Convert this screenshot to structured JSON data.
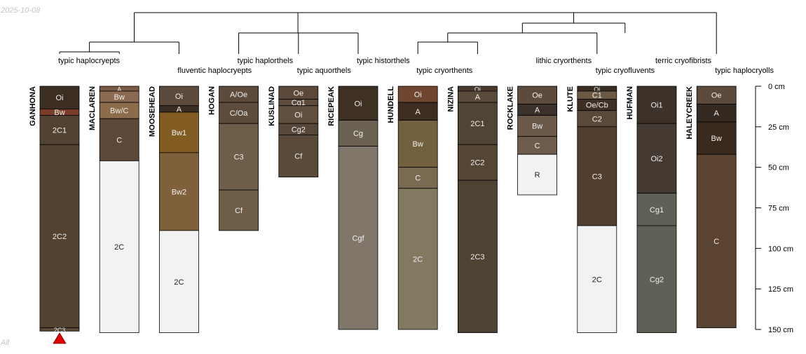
{
  "date_stamp": "2025-10-08",
  "group_label": "All",
  "depth_axis": {
    "unit": "cm",
    "max_depth": 150,
    "ticks": [
      {
        "depth": 0,
        "label": "0 cm"
      },
      {
        "depth": 25,
        "label": "25 cm"
      },
      {
        "depth": 50,
        "label": "50 cm"
      },
      {
        "depth": 75,
        "label": "75 cm"
      },
      {
        "depth": 100,
        "label": "100 cm"
      },
      {
        "depth": 125,
        "label": "125 cm"
      },
      {
        "depth": 150,
        "label": "150 cm"
      }
    ]
  },
  "taxa_labels": [
    {
      "text": "typic haplocryepts",
      "profile": "GANHONA"
    },
    {
      "text": "fluventic haplocryepts",
      "profile": "MOOSEHEAD"
    },
    {
      "text": "typic haplorthels",
      "profile": "HOGAN"
    },
    {
      "text": "typic aquorthels",
      "profile": "KUSLINAD"
    },
    {
      "text": "typic historthels",
      "profile": "RICEPEAK"
    },
    {
      "text": "typic cryorthents",
      "profile": "HUNDELL"
    },
    {
      "text": "lithic cryorthents",
      "profile": "ROCKLAKE"
    },
    {
      "text": "typic cryofluvents",
      "profile": "KLUTE"
    },
    {
      "text": "terric cryofibrists",
      "profile": "HUFMAN"
    },
    {
      "text": "typic haplocryolls",
      "profile": "HALEYCREEK"
    }
  ],
  "profiles": [
    {
      "name": "GANHONA",
      "marker": "truncated",
      "horizons": [
        {
          "name": "Oi",
          "top": 0,
          "bottom": 14,
          "color": "#3c2e22"
        },
        {
          "name": "Bw",
          "top": 14,
          "bottom": 18,
          "color": "#7a3e28"
        },
        {
          "name": "2C1",
          "top": 18,
          "bottom": 36,
          "color": "#524232"
        },
        {
          "name": "2C2",
          "top": 36,
          "bottom": 149,
          "color": "#534230"
        },
        {
          "name": "2C3",
          "top": 149,
          "bottom": 151,
          "color": "#5a4a38"
        }
      ]
    },
    {
      "name": "MACLAREN",
      "horizons": [
        {
          "name": "A",
          "top": 0,
          "bottom": 3,
          "color": "#7a5a44"
        },
        {
          "name": "Bw",
          "top": 3,
          "bottom": 10,
          "color": "#8a6a52"
        },
        {
          "name": "Bw/C",
          "top": 10,
          "bottom": 20,
          "color": "#8c6c4a"
        },
        {
          "name": "C",
          "top": 20,
          "bottom": 46,
          "color": "#5b4837"
        },
        {
          "name": "2C",
          "top": 46,
          "bottom": 152,
          "color": "#f2f2f2"
        }
      ]
    },
    {
      "name": "MOOSEHEAD",
      "horizons": [
        {
          "name": "Oi",
          "top": 0,
          "bottom": 12,
          "color": "#5c4a3c"
        },
        {
          "name": "A",
          "top": 12,
          "bottom": 16,
          "color": "#3a2e24"
        },
        {
          "name": "Bw1",
          "top": 16,
          "bottom": 41,
          "color": "#825c22"
        },
        {
          "name": "Bw2",
          "top": 41,
          "bottom": 89,
          "color": "#80603a"
        },
        {
          "name": "2C",
          "top": 89,
          "bottom": 152,
          "color": "#f2f2f2"
        }
      ]
    },
    {
      "name": "HOGAN",
      "horizons": [
        {
          "name": "A/Oe",
          "top": 0,
          "bottom": 10,
          "color": "#5c4a3a"
        },
        {
          "name": "C/Oa",
          "top": 10,
          "bottom": 23,
          "color": "#5d4c3c"
        },
        {
          "name": "C3",
          "top": 23,
          "bottom": 64,
          "color": "#6e5d48"
        },
        {
          "name": "Cf",
          "top": 64,
          "bottom": 89,
          "color": "#6e5e48"
        }
      ]
    },
    {
      "name": "KUSLINAD",
      "horizons": [
        {
          "name": "Oe",
          "top": 0,
          "bottom": 8,
          "color": "#5c4838"
        },
        {
          "name": "Cg1",
          "top": 8,
          "bottom": 12,
          "color": "#5e4a3a"
        },
        {
          "name": "Oi",
          "top": 12,
          "bottom": 23,
          "color": "#62503f"
        },
        {
          "name": "Cg2",
          "top": 23,
          "bottom": 30,
          "color": "#56473a"
        },
        {
          "name": "Cf",
          "top": 30,
          "bottom": 56,
          "color": "#5a4a3a"
        }
      ]
    },
    {
      "name": "RICEPEAK",
      "horizons": [
        {
          "name": "Oi",
          "top": 0,
          "bottom": 21,
          "color": "#3f3024"
        },
        {
          "name": "Cg",
          "top": 21,
          "bottom": 37,
          "color": "#6c6254"
        },
        {
          "name": "Cgf",
          "top": 37,
          "bottom": 150,
          "color": "#80766a"
        }
      ]
    },
    {
      "name": "HUNDELL",
      "horizons": [
        {
          "name": "Oi",
          "top": 0,
          "bottom": 10,
          "color": "#6f4630"
        },
        {
          "name": "A",
          "top": 10,
          "bottom": 21,
          "color": "#3e2e22"
        },
        {
          "name": "Bw",
          "top": 21,
          "bottom": 50,
          "color": "#73603f"
        },
        {
          "name": "C",
          "top": 50,
          "bottom": 63,
          "color": "#7a6a52"
        },
        {
          "name": "2C",
          "top": 63,
          "bottom": 150,
          "color": "#837860"
        }
      ]
    },
    {
      "name": "NIZINA",
      "horizons": [
        {
          "name": "Oi",
          "top": 0,
          "bottom": 3,
          "color": "#4a3a2e"
        },
        {
          "name": "A",
          "top": 3,
          "bottom": 10,
          "color": "#5a4a3c"
        },
        {
          "name": "2C1",
          "top": 10,
          "bottom": 36,
          "color": "#504434"
        },
        {
          "name": "2C2",
          "top": 36,
          "bottom": 58,
          "color": "#544535"
        },
        {
          "name": "2C3",
          "top": 58,
          "bottom": 152,
          "color": "#4e4232"
        }
      ]
    },
    {
      "name": "ROCKLAKE",
      "horizons": [
        {
          "name": "Oe",
          "top": 0,
          "bottom": 11,
          "color": "#5c4a3c"
        },
        {
          "name": "A",
          "top": 11,
          "bottom": 18,
          "color": "#3c302a"
        },
        {
          "name": "Bw",
          "top": 18,
          "bottom": 31,
          "color": "#6a5848"
        },
        {
          "name": "C",
          "top": 31,
          "bottom": 42,
          "color": "#6e5c4c"
        },
        {
          "name": "R",
          "top": 42,
          "bottom": 67,
          "color": "#f2f2f2"
        }
      ]
    },
    {
      "name": "KLUTE",
      "horizons": [
        {
          "name": "Oi",
          "top": 0,
          "bottom": 3,
          "color": "#3a2e24"
        },
        {
          "name": "C1",
          "top": 3,
          "bottom": 8,
          "color": "#6a5a44"
        },
        {
          "name": "Oe/Cb",
          "top": 8,
          "bottom": 15,
          "color": "#3e3024"
        },
        {
          "name": "C2",
          "top": 15,
          "bottom": 25,
          "color": "#5a4838"
        },
        {
          "name": "C3",
          "top": 25,
          "bottom": 86,
          "color": "#523f30"
        },
        {
          "name": "2C",
          "top": 86,
          "bottom": 152,
          "color": "#f2f2f2"
        }
      ]
    },
    {
      "name": "HUFMAN",
      "horizons": [
        {
          "name": "Oi1",
          "top": 0,
          "bottom": 23,
          "color": "#3c322a"
        },
        {
          "name": "Oi2",
          "top": 23,
          "bottom": 66,
          "color": "#443a32"
        },
        {
          "name": "Cg1",
          "top": 66,
          "bottom": 86,
          "color": "#5e6256"
        },
        {
          "name": "Cg2",
          "top": 86,
          "bottom": 152,
          "color": "#5e6256"
        }
      ]
    },
    {
      "name": "HALEYCREEK",
      "horizons": [
        {
          "name": "Oe",
          "top": 0,
          "bottom": 11,
          "color": "#5c4a3c"
        },
        {
          "name": "A",
          "top": 11,
          "bottom": 22,
          "color": "#342a22"
        },
        {
          "name": "Bw",
          "top": 22,
          "bottom": 42,
          "color": "#3a2a1e"
        },
        {
          "name": "C",
          "top": 42,
          "bottom": 149,
          "color": "#5a4330"
        }
      ]
    }
  ]
}
